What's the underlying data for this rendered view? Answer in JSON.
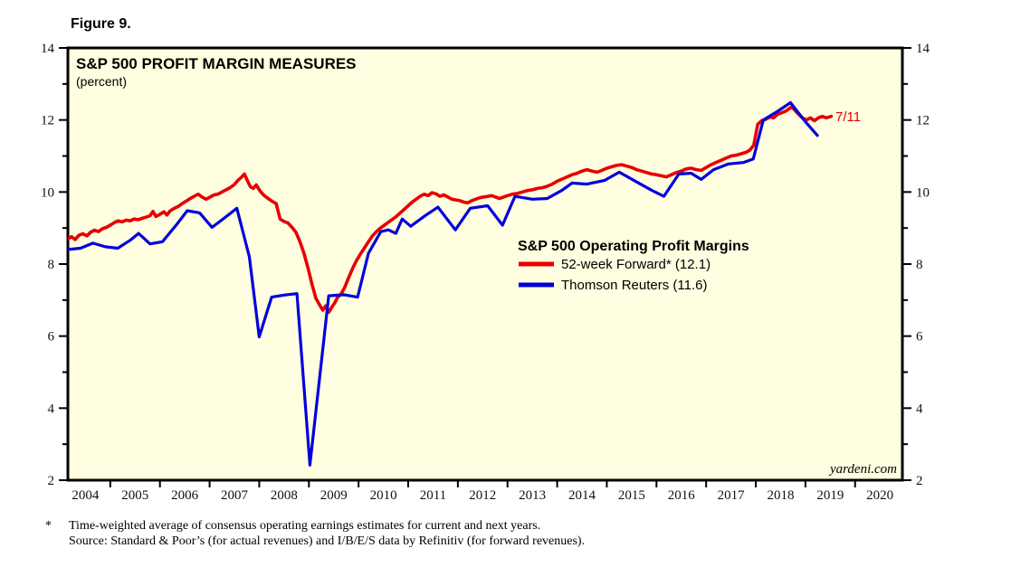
{
  "figure_label": "Figure 9.",
  "chart": {
    "title": "S&P 500 PROFIT MARGIN MEASURES",
    "subtitle": "(percent)",
    "watermark": "yardeni.com",
    "annotation": {
      "text": "7/11",
      "t": 2019.58,
      "value": 12.1
    },
    "legend": {
      "heading": "S&P 500 Operating Profit Margins",
      "items": [
        {
          "label": "52-week Forward* (12.1)",
          "color": "#e60000"
        },
        {
          "label": "Thomson Reuters (11.6)",
          "color": "#0000dd"
        }
      ]
    },
    "colors": {
      "plot_background": "#fffee0",
      "border": "#000000",
      "red": "#e60000",
      "blue": "#0000dd"
    }
  },
  "chart_data": {
    "type": "line",
    "title": "S&P 500 PROFIT MARGIN MEASURES (percent)",
    "xlabel": "",
    "ylabel": "percent",
    "x_range": [
      2004.1,
      2020.95
    ],
    "ylim": [
      2,
      14
    ],
    "y_major_ticks": [
      2,
      4,
      6,
      8,
      10,
      12,
      14
    ],
    "y_minor_ticks": [
      3,
      5,
      7,
      9,
      11,
      13
    ],
    "x_tick_years": [
      2005,
      2006,
      2007,
      2008,
      2009,
      2010,
      2011,
      2012,
      2013,
      2014,
      2015,
      2016,
      2017,
      2018,
      2019,
      2020
    ],
    "x_labels": [
      "2004",
      "2005",
      "2006",
      "2007",
      "2008",
      "2009",
      "2010",
      "2011",
      "2012",
      "2013",
      "2014",
      "2015",
      "2016",
      "2017",
      "2018",
      "2019",
      "2020"
    ],
    "grid": false,
    "legend_position": "center-right",
    "series": [
      {
        "name": "52-week Forward* (12.1)",
        "color": "#e60000",
        "width": 3.6,
        "points": [
          [
            2004.15,
            8.7
          ],
          [
            2004.22,
            8.76
          ],
          [
            2004.29,
            8.68
          ],
          [
            2004.37,
            8.8
          ],
          [
            2004.45,
            8.84
          ],
          [
            2004.53,
            8.78
          ],
          [
            2004.6,
            8.88
          ],
          [
            2004.68,
            8.94
          ],
          [
            2004.76,
            8.9
          ],
          [
            2004.84,
            8.98
          ],
          [
            2004.92,
            9.02
          ],
          [
            2005.0,
            9.08
          ],
          [
            2005.08,
            9.15
          ],
          [
            2005.16,
            9.2
          ],
          [
            2005.24,
            9.17
          ],
          [
            2005.32,
            9.22
          ],
          [
            2005.4,
            9.2
          ],
          [
            2005.48,
            9.25
          ],
          [
            2005.56,
            9.23
          ],
          [
            2005.64,
            9.27
          ],
          [
            2005.72,
            9.3
          ],
          [
            2005.8,
            9.34
          ],
          [
            2005.86,
            9.46
          ],
          [
            2005.92,
            9.32
          ],
          [
            2006.0,
            9.38
          ],
          [
            2006.08,
            9.45
          ],
          [
            2006.14,
            9.36
          ],
          [
            2006.21,
            9.48
          ],
          [
            2006.29,
            9.55
          ],
          [
            2006.37,
            9.6
          ],
          [
            2006.45,
            9.68
          ],
          [
            2006.53,
            9.75
          ],
          [
            2006.61,
            9.82
          ],
          [
            2006.69,
            9.88
          ],
          [
            2006.77,
            9.94
          ],
          [
            2006.85,
            9.86
          ],
          [
            2006.93,
            9.8
          ],
          [
            2007.01,
            9.86
          ],
          [
            2007.09,
            9.92
          ],
          [
            2007.17,
            9.94
          ],
          [
            2007.25,
            10.0
          ],
          [
            2007.33,
            10.06
          ],
          [
            2007.41,
            10.12
          ],
          [
            2007.49,
            10.2
          ],
          [
            2007.57,
            10.32
          ],
          [
            2007.65,
            10.42
          ],
          [
            2007.7,
            10.5
          ],
          [
            2007.76,
            10.32
          ],
          [
            2007.82,
            10.15
          ],
          [
            2007.88,
            10.1
          ],
          [
            2007.94,
            10.2
          ],
          [
            2008.02,
            10.02
          ],
          [
            2008.1,
            9.9
          ],
          [
            2008.18,
            9.82
          ],
          [
            2008.26,
            9.74
          ],
          [
            2008.34,
            9.68
          ],
          [
            2008.42,
            9.25
          ],
          [
            2008.5,
            9.18
          ],
          [
            2008.58,
            9.14
          ],
          [
            2008.66,
            9.02
          ],
          [
            2008.74,
            8.88
          ],
          [
            2008.82,
            8.62
          ],
          [
            2008.9,
            8.3
          ],
          [
            2008.98,
            7.9
          ],
          [
            2009.06,
            7.45
          ],
          [
            2009.14,
            7.05
          ],
          [
            2009.22,
            6.85
          ],
          [
            2009.28,
            6.72
          ],
          [
            2009.34,
            6.84
          ],
          [
            2009.4,
            6.66
          ],
          [
            2009.46,
            6.8
          ],
          [
            2009.52,
            6.92
          ],
          [
            2009.58,
            7.08
          ],
          [
            2009.64,
            7.15
          ],
          [
            2009.72,
            7.35
          ],
          [
            2009.8,
            7.62
          ],
          [
            2009.88,
            7.88
          ],
          [
            2009.96,
            8.1
          ],
          [
            2010.04,
            8.28
          ],
          [
            2010.12,
            8.45
          ],
          [
            2010.2,
            8.62
          ],
          [
            2010.28,
            8.78
          ],
          [
            2010.36,
            8.9
          ],
          [
            2010.44,
            9.0
          ],
          [
            2010.52,
            9.08
          ],
          [
            2010.6,
            9.16
          ],
          [
            2010.68,
            9.24
          ],
          [
            2010.76,
            9.32
          ],
          [
            2010.84,
            9.42
          ],
          [
            2010.92,
            9.52
          ],
          [
            2011.0,
            9.62
          ],
          [
            2011.08,
            9.72
          ],
          [
            2011.16,
            9.8
          ],
          [
            2011.24,
            9.88
          ],
          [
            2011.32,
            9.94
          ],
          [
            2011.4,
            9.9
          ],
          [
            2011.48,
            9.98
          ],
          [
            2011.56,
            9.95
          ],
          [
            2011.64,
            9.88
          ],
          [
            2011.72,
            9.92
          ],
          [
            2011.8,
            9.86
          ],
          [
            2011.88,
            9.8
          ],
          [
            2011.96,
            9.78
          ],
          [
            2012.04,
            9.76
          ],
          [
            2012.12,
            9.72
          ],
          [
            2012.2,
            9.7
          ],
          [
            2012.28,
            9.76
          ],
          [
            2012.36,
            9.8
          ],
          [
            2012.44,
            9.84
          ],
          [
            2012.52,
            9.86
          ],
          [
            2012.6,
            9.88
          ],
          [
            2012.68,
            9.9
          ],
          [
            2012.76,
            9.86
          ],
          [
            2012.84,
            9.82
          ],
          [
            2012.92,
            9.86
          ],
          [
            2013.0,
            9.9
          ],
          [
            2013.1,
            9.94
          ],
          [
            2013.2,
            9.96
          ],
          [
            2013.3,
            10.0
          ],
          [
            2013.4,
            10.04
          ],
          [
            2013.5,
            10.06
          ],
          [
            2013.6,
            10.1
          ],
          [
            2013.7,
            10.12
          ],
          [
            2013.8,
            10.16
          ],
          [
            2013.9,
            10.22
          ],
          [
            2014.0,
            10.3
          ],
          [
            2014.1,
            10.36
          ],
          [
            2014.2,
            10.42
          ],
          [
            2014.3,
            10.48
          ],
          [
            2014.4,
            10.52
          ],
          [
            2014.5,
            10.58
          ],
          [
            2014.6,
            10.62
          ],
          [
            2014.7,
            10.58
          ],
          [
            2014.8,
            10.55
          ],
          [
            2014.9,
            10.6
          ],
          [
            2015.0,
            10.66
          ],
          [
            2015.1,
            10.7
          ],
          [
            2015.2,
            10.74
          ],
          [
            2015.3,
            10.76
          ],
          [
            2015.4,
            10.72
          ],
          [
            2015.5,
            10.68
          ],
          [
            2015.6,
            10.62
          ],
          [
            2015.7,
            10.58
          ],
          [
            2015.8,
            10.54
          ],
          [
            2015.9,
            10.5
          ],
          [
            2016.0,
            10.48
          ],
          [
            2016.1,
            10.45
          ],
          [
            2016.2,
            10.42
          ],
          [
            2016.3,
            10.48
          ],
          [
            2016.4,
            10.54
          ],
          [
            2016.5,
            10.58
          ],
          [
            2016.6,
            10.64
          ],
          [
            2016.7,
            10.66
          ],
          [
            2016.8,
            10.62
          ],
          [
            2016.9,
            10.6
          ],
          [
            2017.0,
            10.68
          ],
          [
            2017.1,
            10.76
          ],
          [
            2017.2,
            10.82
          ],
          [
            2017.3,
            10.88
          ],
          [
            2017.4,
            10.94
          ],
          [
            2017.5,
            11.0
          ],
          [
            2017.6,
            11.02
          ],
          [
            2017.7,
            11.06
          ],
          [
            2017.8,
            11.1
          ],
          [
            2017.88,
            11.16
          ],
          [
            2017.96,
            11.3
          ],
          [
            2018.04,
            11.88
          ],
          [
            2018.12,
            11.98
          ],
          [
            2018.2,
            12.02
          ],
          [
            2018.28,
            12.08
          ],
          [
            2018.36,
            12.06
          ],
          [
            2018.44,
            12.16
          ],
          [
            2018.52,
            12.2
          ],
          [
            2018.6,
            12.24
          ],
          [
            2018.66,
            12.3
          ],
          [
            2018.72,
            12.36
          ],
          [
            2018.78,
            12.28
          ],
          [
            2018.86,
            12.16
          ],
          [
            2018.94,
            12.06
          ],
          [
            2019.02,
            12.0
          ],
          [
            2019.1,
            12.06
          ],
          [
            2019.18,
            11.98
          ],
          [
            2019.26,
            12.06
          ],
          [
            2019.34,
            12.1
          ],
          [
            2019.42,
            12.06
          ],
          [
            2019.52,
            12.1
          ]
        ]
      },
      {
        "name": "Thomson Reuters (11.6)",
        "color": "#0000dd",
        "width": 3.2,
        "points": [
          [
            2004.1,
            8.4
          ],
          [
            2004.4,
            8.44
          ],
          [
            2004.65,
            8.58
          ],
          [
            2004.9,
            8.48
          ],
          [
            2005.15,
            8.44
          ],
          [
            2005.4,
            8.66
          ],
          [
            2005.57,
            8.85
          ],
          [
            2005.8,
            8.56
          ],
          [
            2006.05,
            8.62
          ],
          [
            2006.35,
            9.12
          ],
          [
            2006.55,
            9.48
          ],
          [
            2006.8,
            9.42
          ],
          [
            2007.05,
            9.02
          ],
          [
            2007.3,
            9.28
          ],
          [
            2007.55,
            9.55
          ],
          [
            2007.8,
            8.2
          ],
          [
            2008.0,
            5.98
          ],
          [
            2008.25,
            7.08
          ],
          [
            2008.5,
            7.14
          ],
          [
            2008.76,
            7.18
          ],
          [
            2009.02,
            2.42
          ],
          [
            2009.4,
            7.12
          ],
          [
            2009.7,
            7.15
          ],
          [
            2009.98,
            7.08
          ],
          [
            2010.2,
            8.3
          ],
          [
            2010.45,
            8.9
          ],
          [
            2010.6,
            8.95
          ],
          [
            2010.75,
            8.85
          ],
          [
            2010.88,
            9.25
          ],
          [
            2011.05,
            9.05
          ],
          [
            2011.35,
            9.35
          ],
          [
            2011.6,
            9.58
          ],
          [
            2011.95,
            8.95
          ],
          [
            2012.25,
            9.55
          ],
          [
            2012.6,
            9.62
          ],
          [
            2012.9,
            9.08
          ],
          [
            2013.15,
            9.88
          ],
          [
            2013.5,
            9.8
          ],
          [
            2013.8,
            9.82
          ],
          [
            2014.1,
            10.05
          ],
          [
            2014.3,
            10.25
          ],
          [
            2014.6,
            10.22
          ],
          [
            2014.95,
            10.32
          ],
          [
            2015.25,
            10.55
          ],
          [
            2015.6,
            10.28
          ],
          [
            2015.9,
            10.05
          ],
          [
            2016.15,
            9.88
          ],
          [
            2016.45,
            10.5
          ],
          [
            2016.7,
            10.52
          ],
          [
            2016.9,
            10.35
          ],
          [
            2017.15,
            10.62
          ],
          [
            2017.45,
            10.78
          ],
          [
            2017.75,
            10.82
          ],
          [
            2017.95,
            10.92
          ],
          [
            2018.15,
            12.0
          ],
          [
            2018.45,
            12.25
          ],
          [
            2018.7,
            12.48
          ],
          [
            2019.0,
            11.95
          ],
          [
            2019.24,
            11.57
          ]
        ]
      }
    ]
  },
  "footnotes": {
    "marker": "*",
    "line1": "Time-weighted average of consensus operating earnings estimates for current and next years.",
    "line2": "Source: Standard & Poor’s (for actual revenues) and I/B/E/S data by Refinitiv (for forward revenues)."
  }
}
